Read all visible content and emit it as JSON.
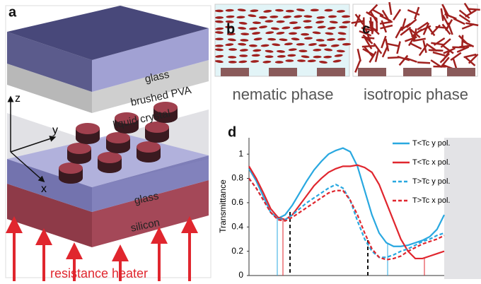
{
  "panel_a": {
    "label": "a",
    "layers": [
      "glass",
      "brushed PVA",
      "liquid crystal",
      "glass",
      "silicon"
    ],
    "axes": [
      "z",
      "y",
      "x"
    ],
    "heater": "resistance heater"
  },
  "panel_b": {
    "label": "b",
    "caption": "nematic phase"
  },
  "panel_c": {
    "label": "c",
    "caption": "isotropic phase"
  },
  "chart_data": {
    "type": "line",
    "panel_label": "d",
    "y_label": "Transmittance",
    "ylim": [
      0,
      1.1
    ],
    "yticks": [
      0,
      0.2,
      0.4,
      0.6,
      0.8,
      1
    ],
    "legend": "upper right",
    "series": [
      {
        "name": "T<Tc y pol.",
        "color": "#29a8e0",
        "dashed": false,
        "values": [
          0.88,
          0.78,
          0.65,
          0.52,
          0.47,
          0.5,
          0.58,
          0.68,
          0.78,
          0.87,
          0.94,
          1.0,
          1.03,
          1.05,
          1.02,
          0.9,
          0.7,
          0.5,
          0.35,
          0.27,
          0.24,
          0.24,
          0.25,
          0.27,
          0.29,
          0.32,
          0.38,
          0.5
        ]
      },
      {
        "name": "T<Tc x pol.",
        "color": "#e0262e",
        "dashed": false,
        "values": [
          0.9,
          0.8,
          0.68,
          0.55,
          0.48,
          0.46,
          0.5,
          0.58,
          0.66,
          0.74,
          0.8,
          0.85,
          0.88,
          0.9,
          0.9,
          0.91,
          0.89,
          0.85,
          0.75,
          0.6,
          0.45,
          0.3,
          0.2,
          0.14,
          0.14,
          0.16,
          0.18,
          0.2
        ]
      },
      {
        "name": "T>Tc y pol.",
        "color": "#29a8e0",
        "dashed": true,
        "values": [
          0.8,
          0.72,
          0.62,
          0.52,
          0.47,
          0.46,
          0.5,
          0.55,
          0.6,
          0.64,
          0.68,
          0.72,
          0.75,
          0.72,
          0.62,
          0.45,
          0.3,
          0.2,
          0.15,
          0.15,
          0.17,
          0.2,
          0.22,
          0.25,
          0.28,
          0.3,
          0.33,
          0.35
        ]
      },
      {
        "name": "T>Tc x pol.",
        "color": "#e0262e",
        "dashed": true,
        "values": [
          0.8,
          0.72,
          0.62,
          0.52,
          0.46,
          0.45,
          0.48,
          0.52,
          0.56,
          0.6,
          0.64,
          0.68,
          0.7,
          0.7,
          0.62,
          0.5,
          0.35,
          0.22,
          0.15,
          0.13,
          0.14,
          0.16,
          0.2,
          0.23,
          0.26,
          0.28,
          0.3,
          0.33
        ]
      }
    ]
  }
}
